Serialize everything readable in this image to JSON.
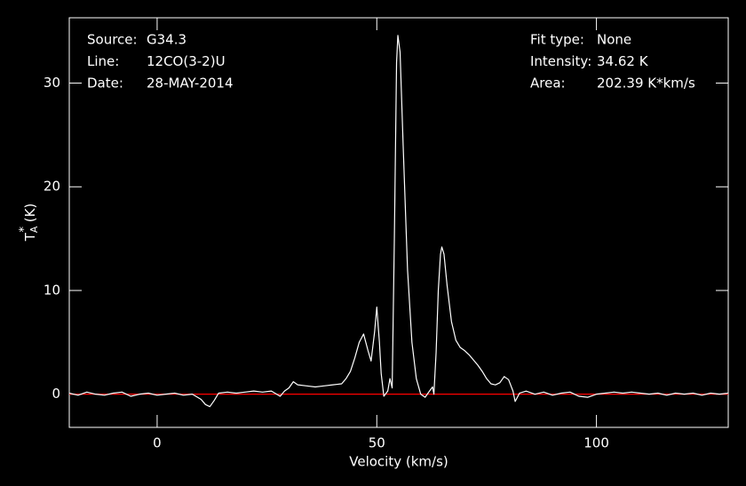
{
  "chart_data": {
    "type": "line",
    "annotations": [
      {
        "label": "Source:",
        "value": "G34.3"
      },
      {
        "label": "Line:",
        "value": "12CO(3-2)U"
      },
      {
        "label": "Date:",
        "value": "28-MAY-2014"
      },
      {
        "label": "Fit type:",
        "value": "None"
      },
      {
        "label": "Intensity:",
        "value": "34.62 K"
      },
      {
        "label": "Area:",
        "value": "202.39 K*km/s"
      }
    ],
    "xlabel": "Velocity (km/s)",
    "ylabel": {
      "main": "T",
      "sub": "A",
      "sup": "*",
      "unit": " (K)"
    },
    "x": [
      -20,
      -18,
      -16,
      -14,
      -12,
      -10,
      -8,
      -6,
      -4,
      -2,
      0,
      2,
      4,
      6,
      8,
      10,
      11,
      12,
      13,
      14,
      16,
      18,
      20,
      22,
      24,
      26,
      28,
      29,
      30,
      31,
      32,
      34,
      36,
      38,
      40,
      42,
      43,
      44,
      45,
      46,
      47,
      48,
      48.7,
      49.5,
      50,
      50.6,
      51,
      51.6,
      52.5,
      53,
      53.5,
      54,
      54.5,
      54.8,
      55.3,
      56,
      57,
      58,
      59,
      60,
      61,
      62,
      62.7,
      63,
      63.5,
      64,
      64.5,
      64.8,
      65.3,
      66,
      67,
      68,
      69,
      70,
      71,
      72,
      73,
      74,
      75,
      76,
      77,
      78,
      79,
      80,
      81,
      81.5,
      82.5,
      84,
      86,
      88,
      90,
      92,
      94,
      96,
      98,
      100,
      102,
      104,
      106,
      108,
      110,
      112,
      114,
      116,
      118,
      120,
      122,
      124,
      126,
      128,
      130
    ],
    "series": [
      {
        "color": "#ffffff",
        "values": [
          0.1,
          -0.1,
          0.2,
          0,
          -0.1,
          0.1,
          0.2,
          -0.2,
          0,
          0.1,
          -0.1,
          0,
          0.1,
          -0.1,
          0,
          -0.5,
          -1.0,
          -1.2,
          -0.6,
          0.1,
          0.2,
          0.1,
          0.2,
          0.3,
          0.2,
          0.3,
          -0.2,
          0.3,
          0.6,
          1.2,
          0.9,
          0.8,
          0.7,
          0.8,
          0.9,
          1.0,
          1.5,
          2.2,
          3.5,
          5.0,
          5.8,
          4.2,
          3.2,
          6,
          8.4,
          5,
          2,
          -0.2,
          0.3,
          1.5,
          0.6,
          15,
          32,
          34.6,
          33,
          24,
          12,
          5,
          1.5,
          0,
          -0.3,
          0.3,
          0.7,
          0,
          4,
          10,
          13.5,
          14.2,
          13.5,
          10.5,
          7,
          5.2,
          4.5,
          4.2,
          3.8,
          3.3,
          2.8,
          2.2,
          1.5,
          1.0,
          0.9,
          1.1,
          1.7,
          1.4,
          0.3,
          -0.7,
          0.1,
          0.3,
          0,
          0.2,
          -0.1,
          0.1,
          0.2,
          -0.2,
          -0.3,
          0,
          0.1,
          0.2,
          0.1,
          0.2,
          0.1,
          0,
          0.1,
          -0.1,
          0.1,
          0,
          0.1,
          -0.1,
          0.1,
          0,
          0.1
        ]
      }
    ],
    "baseline": {
      "value": 0,
      "color": "#ff0000"
    },
    "xlim": [
      -20,
      130
    ],
    "ylim": [
      -3.2,
      36.3
    ],
    "xticks": [
      0,
      50,
      100
    ],
    "yticks": [
      0,
      10,
      20,
      30
    ]
  }
}
